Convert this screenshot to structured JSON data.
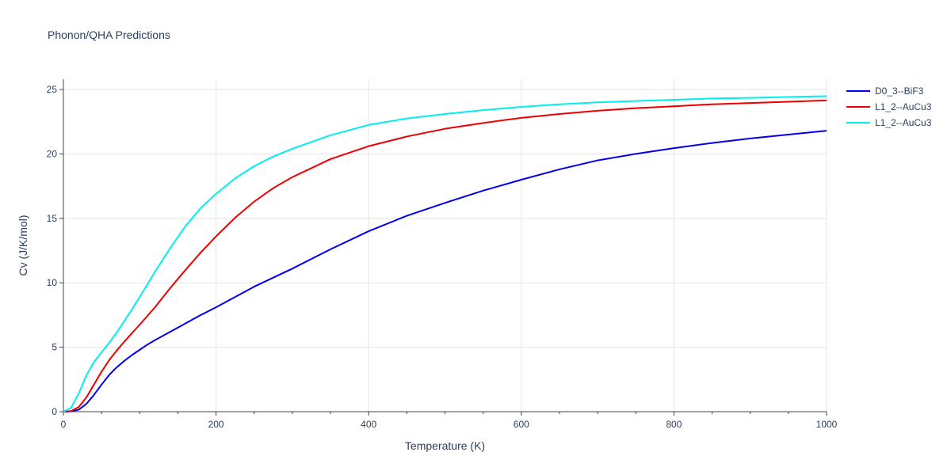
{
  "chart_data": {
    "type": "line",
    "title": "Phonon/QHA Predictions",
    "xlabel": "Temperature (K)",
    "ylabel": "Cv (J/K/mol)",
    "xlim": [
      0,
      1000
    ],
    "ylim": [
      0,
      25.8
    ],
    "xticks": [
      0,
      200,
      400,
      600,
      800,
      1000
    ],
    "yticks": [
      0,
      5,
      10,
      15,
      20,
      25
    ],
    "grid": true,
    "legend": "top-right",
    "series": [
      {
        "name": "D0_3--BiF3",
        "color": "#0000ee",
        "x": [
          0,
          10,
          20,
          30,
          40,
          50,
          60,
          70,
          80,
          90,
          100,
          110,
          120,
          140,
          160,
          180,
          200,
          250,
          300,
          350,
          400,
          450,
          500,
          550,
          600,
          650,
          700,
          750,
          800,
          850,
          900,
          950,
          1000
        ],
        "y": [
          0,
          0.02,
          0.15,
          0.6,
          1.3,
          2.1,
          2.85,
          3.45,
          3.95,
          4.4,
          4.8,
          5.2,
          5.55,
          6.2,
          6.85,
          7.5,
          8.1,
          9.7,
          11.1,
          12.6,
          14.0,
          15.2,
          16.2,
          17.15,
          18.0,
          18.8,
          19.5,
          20.0,
          20.45,
          20.85,
          21.2,
          21.5,
          21.8
        ]
      },
      {
        "name": "L1_2--AuCu3",
        "color": "#ee0000",
        "x": [
          0,
          10,
          20,
          30,
          40,
          50,
          60,
          70,
          80,
          90,
          100,
          120,
          140,
          160,
          180,
          200,
          225,
          250,
          275,
          300,
          350,
          400,
          450,
          500,
          550,
          600,
          650,
          700,
          750,
          800,
          850,
          900,
          950,
          1000
        ],
        "y": [
          0,
          0.05,
          0.35,
          1.1,
          2.1,
          3.1,
          4.0,
          4.75,
          5.45,
          6.1,
          6.75,
          8.1,
          9.6,
          11.0,
          12.35,
          13.6,
          15.05,
          16.3,
          17.35,
          18.2,
          19.6,
          20.6,
          21.35,
          21.95,
          22.4,
          22.8,
          23.1,
          23.35,
          23.55,
          23.7,
          23.85,
          23.95,
          24.05,
          24.15
        ]
      },
      {
        "name": "L1_2--AuCu3",
        "color": "#00eeee",
        "x": [
          0,
          10,
          20,
          30,
          40,
          50,
          60,
          70,
          80,
          90,
          100,
          120,
          140,
          160,
          180,
          200,
          225,
          250,
          275,
          300,
          350,
          400,
          450,
          500,
          550,
          600,
          650,
          700,
          750,
          800,
          850,
          900,
          950,
          1000
        ],
        "y": [
          0,
          0.3,
          1.4,
          2.8,
          3.85,
          4.6,
          5.35,
          6.15,
          7.05,
          7.95,
          8.9,
          10.85,
          12.7,
          14.4,
          15.8,
          16.9,
          18.1,
          19.05,
          19.8,
          20.4,
          21.45,
          22.25,
          22.75,
          23.1,
          23.4,
          23.65,
          23.85,
          24.0,
          24.1,
          24.2,
          24.3,
          24.35,
          24.42,
          24.48
        ]
      }
    ]
  }
}
